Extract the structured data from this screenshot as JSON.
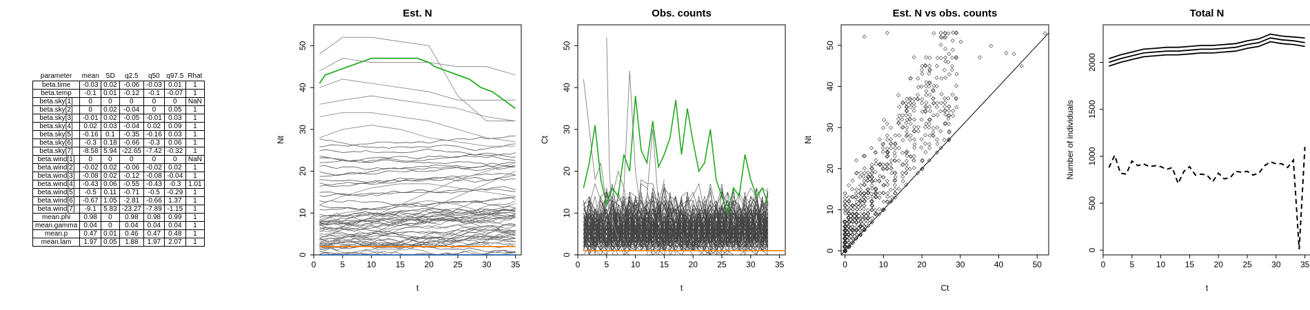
{
  "table": {
    "headers": [
      "parameter",
      "mean",
      "SD",
      "q2.5",
      "q50",
      "q97.5",
      "Rhat"
    ],
    "rows": [
      [
        "beta.time",
        "-0.03",
        "0.02",
        "-0.06",
        "-0.03",
        "0.01",
        "1"
      ],
      [
        "beta.temp",
        "-0.1",
        "0.01",
        "-0.12",
        "-0.1",
        "-0.07",
        "1"
      ],
      [
        "beta.sky[1]",
        "0",
        "0",
        "0",
        "0",
        "0",
        "NaN"
      ],
      [
        "beta.sky[2]",
        "0",
        "0.02",
        "-0.04",
        "0",
        "0.05",
        "1"
      ],
      [
        "beta.sky[3]",
        "-0.01",
        "0.02",
        "-0.05",
        "-0.01",
        "0.03",
        "1"
      ],
      [
        "beta.sky[4]",
        "0.02",
        "0.03",
        "-0.04",
        "0.02",
        "0.09",
        "1"
      ],
      [
        "beta.sky[5]",
        "-0.16",
        "0.1",
        "-0.35",
        "-0.16",
        "0.03",
        "1"
      ],
      [
        "beta.sky[6]",
        "-0.3",
        "0.18",
        "-0.66",
        "-0.3",
        "0.06",
        "1"
      ],
      [
        "beta.sky[7]",
        "-8.58",
        "5.94",
        "-22.65",
        "-7.42",
        "-0.32",
        "1"
      ],
      [
        "beta.wind[1]",
        "0",
        "0",
        "0",
        "0",
        "0",
        "NaN"
      ],
      [
        "beta.wind[2]",
        "-0.02",
        "0.02",
        "-0.06",
        "-0.02",
        "0.02",
        "1"
      ],
      [
        "beta.wind[3]",
        "-0.08",
        "0.02",
        "-0.12",
        "-0.08",
        "-0.04",
        "1"
      ],
      [
        "beta.wind[4]",
        "-0.43",
        "0.06",
        "-0.55",
        "-0.43",
        "-0.3",
        "1.01"
      ],
      [
        "beta.wind[5]",
        "-0.5",
        "0.11",
        "-0.71",
        "-0.5",
        "-0.29",
        "1"
      ],
      [
        "beta.wind[6]",
        "-0.67",
        "1.05",
        "-2.81",
        "-0.66",
        "1.37",
        "1"
      ],
      [
        "beta.wind[7]",
        "-9.1",
        "5.83",
        "-23.27",
        "-7.89",
        "-1.15",
        "1"
      ],
      [
        "mean.phi",
        "0.98",
        "0",
        "0.98",
        "0.98",
        "0.99",
        "1"
      ],
      [
        "mean.gamma",
        "0.04",
        "0",
        "0.04",
        "0.04",
        "0.04",
        "1"
      ],
      [
        "mean.p",
        "0.47",
        "0.01",
        "0.46",
        "0.47",
        "0.48",
        "1"
      ],
      [
        "mean.lam",
        "1.97",
        "0.05",
        "1.88",
        "1.97",
        "2.07",
        "1"
      ]
    ]
  },
  "chart_data": [
    {
      "type": "line",
      "title": "Est. N",
      "xlabel": "t",
      "ylabel": "Nt",
      "xlim": [
        0,
        36
      ],
      "ylim": [
        0,
        55
      ],
      "xticks": [
        0,
        5,
        10,
        15,
        20,
        25,
        30,
        35
      ],
      "yticks": [
        0,
        10,
        20,
        30,
        40,
        50
      ],
      "grey_levels": [
        1,
        2,
        3,
        4,
        5,
        6,
        7,
        8,
        9,
        10,
        11,
        12,
        13,
        14,
        15,
        16,
        17,
        18,
        19,
        20,
        21,
        22,
        23,
        24,
        25,
        26,
        28
      ],
      "series": [
        {
          "color": "#808080",
          "x": [
            1,
            5,
            10,
            15,
            20,
            25,
            30,
            35
          ],
          "y": [
            48,
            52,
            52,
            51,
            50,
            38,
            32,
            32
          ]
        },
        {
          "color": "#808080",
          "x": [
            1,
            5,
            10,
            15,
            20,
            25,
            30,
            35
          ],
          "y": [
            44,
            47,
            46,
            46,
            46,
            45,
            45,
            43
          ]
        },
        {
          "color": "#808080",
          "x": [
            1,
            5,
            10,
            15,
            20,
            25,
            30,
            35
          ],
          "y": [
            40,
            42,
            41,
            40,
            39,
            37,
            37,
            37
          ]
        },
        {
          "color": "#808080",
          "x": [
            1,
            5,
            10,
            15,
            20,
            25,
            30,
            35
          ],
          "y": [
            36,
            37,
            38,
            37,
            36,
            35,
            33,
            32
          ]
        },
        {
          "color": "#808080",
          "x": [
            1,
            5,
            10,
            15,
            20,
            25,
            30,
            35
          ],
          "y": [
            33,
            34,
            34,
            33,
            32,
            30,
            28,
            27
          ]
        },
        {
          "color": "#808080",
          "x": [
            1,
            5,
            10,
            15,
            20,
            25,
            30,
            35
          ],
          "y": [
            28,
            30,
            31,
            30,
            28,
            27,
            26,
            26
          ]
        },
        {
          "color": "#808080",
          "x": [
            1,
            5,
            10,
            15,
            20,
            25,
            30,
            35
          ],
          "y": [
            4,
            6,
            9,
            12,
            15,
            18,
            20,
            22
          ]
        },
        {
          "color": "#808080",
          "x": [
            1,
            5,
            10,
            15,
            20,
            25,
            30,
            35
          ],
          "y": [
            2,
            3,
            5,
            8,
            11,
            14,
            17,
            20
          ]
        },
        {
          "color": "#808080",
          "x": [
            1,
            5,
            10,
            15,
            20,
            25,
            30,
            35
          ],
          "y": [
            12,
            14,
            16,
            17,
            17,
            16,
            15,
            14
          ]
        },
        {
          "color": "#808080",
          "x": [
            1,
            5,
            10,
            15,
            20,
            25,
            30,
            35
          ],
          "y": [
            8,
            10,
            11,
            12,
            13,
            12,
            10,
            9
          ]
        },
        {
          "color": "#22aa22",
          "x": [
            1,
            2,
            4,
            6,
            8,
            10,
            12,
            14,
            16,
            18,
            20,
            21,
            23,
            25,
            27,
            29,
            31,
            33,
            35
          ],
          "y": [
            41,
            43,
            44,
            45,
            46,
            47,
            47,
            47,
            47,
            47,
            46,
            45,
            44,
            43,
            42,
            40,
            39,
            37,
            35
          ]
        },
        {
          "color": "#ff7f0e",
          "x": [
            1,
            35
          ],
          "y": [
            2,
            2
          ]
        },
        {
          "color": "#1f5fa8",
          "x": [
            1,
            35
          ],
          "y": [
            0,
            0
          ]
        }
      ]
    },
    {
      "type": "line",
      "title": "Obs. counts",
      "xlabel": "t",
      "ylabel": "Ct",
      "xlim": [
        0,
        36
      ],
      "ylim": [
        0,
        55
      ],
      "xticks": [
        0,
        5,
        10,
        15,
        20,
        25,
        30,
        35
      ],
      "yticks": [
        0,
        10,
        20,
        30,
        40,
        50
      ],
      "series": [
        {
          "color": "#808080",
          "x": [
            1,
            2,
            3,
            4,
            5,
            6,
            7,
            8,
            9,
            10,
            11,
            12,
            13,
            14,
            15
          ],
          "y": [
            42,
            30,
            18,
            22,
            12,
            14,
            20,
            16,
            44,
            20,
            10,
            14,
            30,
            12,
            18
          ]
        },
        {
          "color": "#808080",
          "x": [
            5,
            5.5,
            6,
            7
          ],
          "y": [
            52,
            20,
            8,
            4
          ]
        },
        {
          "color": "#22aa22",
          "x": [
            1,
            2,
            3,
            4,
            5,
            6,
            7,
            8,
            9,
            10,
            11,
            12,
            13,
            14,
            15,
            16,
            17,
            18,
            19,
            20,
            21,
            22,
            23,
            24,
            25,
            26,
            27,
            28,
            29,
            30,
            31,
            32,
            33
          ],
          "y": [
            16,
            22,
            31,
            18,
            12,
            16,
            14,
            24,
            20,
            38,
            25,
            22,
            32,
            21,
            24,
            28,
            37,
            24,
            35,
            27,
            20,
            22,
            30,
            18,
            14,
            10,
            16,
            14,
            24,
            18,
            14,
            16,
            12
          ]
        },
        {
          "color": "#ff7f0e",
          "x": [
            1,
            36
          ],
          "y": [
            1,
            1
          ]
        }
      ]
    },
    {
      "type": "scatter",
      "title": "Est. N vs obs. counts",
      "xlabel": "Ct",
      "ylabel": "Nt",
      "xlim": [
        -1,
        53
      ],
      "ylim": [
        -1,
        55
      ],
      "xticks": [
        0,
        10,
        20,
        30,
        40,
        50
      ],
      "yticks": [
        0,
        10,
        20,
        30,
        40,
        50
      ],
      "identity_line": true,
      "marker": "diamond-open"
    },
    {
      "type": "line",
      "title": "Total N",
      "xlabel": "t",
      "ylabel": "Number of individuals",
      "xlim": [
        0,
        36
      ],
      "ylim": [
        -50,
        2400
      ],
      "xticks": [
        0,
        5,
        10,
        15,
        20,
        25,
        30,
        35
      ],
      "yticks": [
        0,
        500,
        1000,
        1500,
        2000
      ],
      "series": [
        {
          "name": "upper",
          "style": "solid",
          "x": [
            1,
            3,
            5,
            7,
            9,
            11,
            13,
            15,
            17,
            19,
            21,
            23,
            25,
            27,
            29,
            31,
            33,
            35
          ],
          "y": [
            2040,
            2080,
            2110,
            2140,
            2150,
            2160,
            2160,
            2170,
            2180,
            2180,
            2190,
            2200,
            2230,
            2250,
            2300,
            2280,
            2270,
            2260
          ]
        },
        {
          "name": "mean",
          "style": "solid",
          "x": [
            1,
            3,
            5,
            7,
            9,
            11,
            13,
            15,
            17,
            19,
            21,
            23,
            25,
            27,
            29,
            31,
            33,
            35
          ],
          "y": [
            2000,
            2040,
            2070,
            2100,
            2110,
            2120,
            2120,
            2130,
            2140,
            2140,
            2150,
            2160,
            2190,
            2210,
            2260,
            2240,
            2230,
            2210
          ]
        },
        {
          "name": "lower",
          "style": "solid",
          "x": [
            1,
            3,
            5,
            7,
            9,
            11,
            13,
            15,
            17,
            19,
            21,
            23,
            25,
            27,
            29,
            31,
            33,
            35
          ],
          "y": [
            1960,
            2000,
            2030,
            2060,
            2070,
            2080,
            2080,
            2090,
            2100,
            2100,
            2110,
            2120,
            2150,
            2170,
            2220,
            2200,
            2190,
            2170
          ]
        },
        {
          "name": "observed",
          "style": "dashed",
          "x": [
            1,
            2,
            3,
            4,
            5,
            6,
            7,
            8,
            9,
            10,
            11,
            12,
            13,
            14,
            15,
            16,
            17,
            18,
            19,
            20,
            21,
            22,
            23,
            24,
            25,
            26,
            27,
            28,
            29,
            30,
            31,
            32,
            33,
            34,
            35
          ],
          "y": [
            880,
            1010,
            820,
            810,
            950,
            900,
            920,
            890,
            900,
            890,
            860,
            880,
            710,
            840,
            890,
            800,
            810,
            800,
            730,
            820,
            760,
            770,
            840,
            830,
            840,
            800,
            820,
            900,
            940,
            920,
            920,
            880,
            960,
            10,
            1100
          ]
        }
      ]
    }
  ]
}
